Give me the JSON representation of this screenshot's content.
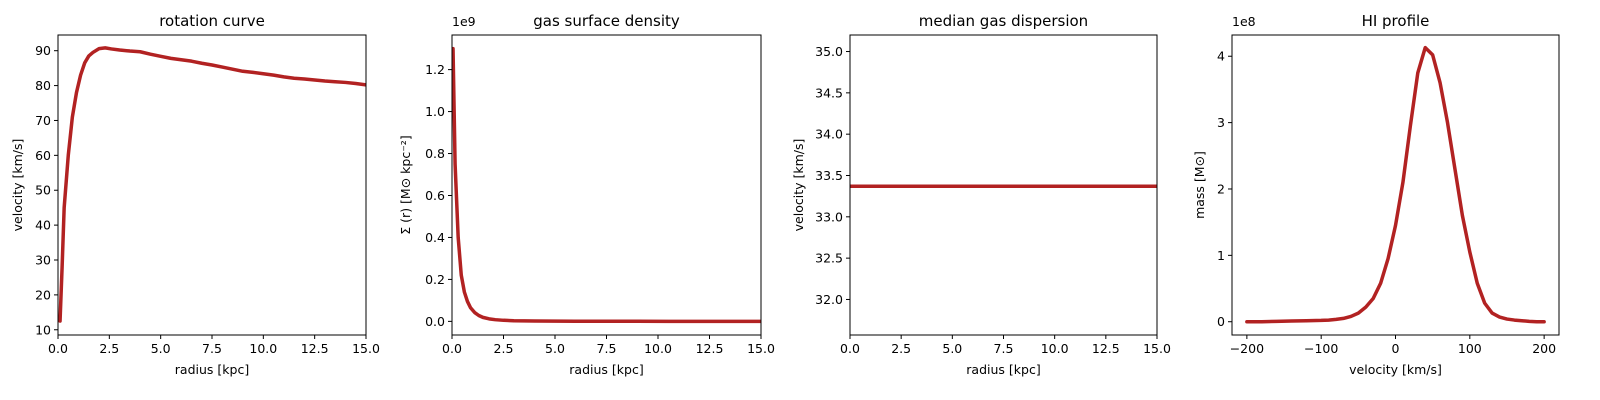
{
  "line_color": "#b22222",
  "chart_data": [
    {
      "type": "line",
      "title": "rotation curve",
      "xlabel": "radius [kpc]",
      "ylabel": "velocity [km/s]",
      "xlim": [
        0,
        15
      ],
      "ylim": [
        8.5,
        94.5
      ],
      "xticks": [
        0,
        2.5,
        5,
        7.5,
        10,
        12.5,
        15
      ],
      "xtick_labels": [
        "0.0",
        "2.5",
        "5.0",
        "7.5",
        "10.0",
        "12.5",
        "15.0"
      ],
      "yticks": [
        10,
        20,
        30,
        40,
        50,
        60,
        70,
        80,
        90
      ],
      "ytick_labels": [
        "10",
        "20",
        "30",
        "40",
        "50",
        "60",
        "70",
        "80",
        "90"
      ],
      "offset_text": "",
      "series": [
        {
          "x": [
            0.1,
            0.2,
            0.3,
            0.5,
            0.7,
            0.9,
            1.1,
            1.3,
            1.5,
            1.7,
            2.0,
            2.3,
            2.6,
            3.0,
            3.5,
            4.0,
            4.5,
            5.0,
            5.5,
            6.0,
            6.5,
            7.0,
            7.5,
            8.0,
            8.5,
            9.0,
            9.5,
            10.0,
            10.5,
            11.0,
            11.5,
            12.0,
            12.5,
            13.0,
            13.5,
            14.0,
            14.5,
            15.0
          ],
          "y": [
            12.5,
            28,
            45,
            60,
            71,
            78,
            83,
            86.5,
            88.5,
            89.5,
            90.6,
            90.8,
            90.5,
            90.2,
            89.9,
            89.7,
            89.0,
            88.4,
            87.8,
            87.4,
            87.0,
            86.4,
            85.9,
            85.3,
            84.7,
            84.1,
            83.8,
            83.4,
            83.0,
            82.5,
            82.1,
            81.9,
            81.6,
            81.3,
            81.1,
            80.9,
            80.6,
            80.2
          ]
        }
      ]
    },
    {
      "type": "line",
      "title": "gas surface density",
      "xlabel": "radius [kpc]",
      "ylabel": "Σ (r) [M⊙ kpc⁻²]",
      "xlim": [
        0,
        15
      ],
      "ylim": [
        -0.065,
        1.365
      ],
      "xticks": [
        0,
        2.5,
        5,
        7.5,
        10,
        12.5,
        15
      ],
      "xtick_labels": [
        "0.0",
        "2.5",
        "5.0",
        "7.5",
        "10.0",
        "12.5",
        "15.0"
      ],
      "yticks": [
        0,
        0.2,
        0.4,
        0.6,
        0.8,
        1.0,
        1.2
      ],
      "ytick_labels": [
        "0.0",
        "0.2",
        "0.4",
        "0.6",
        "0.8",
        "1.0",
        "1.2"
      ],
      "offset_text": "1e9",
      "series": [
        {
          "x": [
            0.05,
            0.15,
            0.3,
            0.45,
            0.6,
            0.75,
            0.9,
            1.1,
            1.3,
            1.5,
            1.8,
            2.1,
            2.5,
            3.0,
            3.5,
            4.0,
            5.0,
            6.0,
            7.5,
            9.0,
            10.5,
            12.0,
            13.5,
            15.0
          ],
          "y": [
            1.3,
            0.75,
            0.4,
            0.22,
            0.14,
            0.095,
            0.065,
            0.042,
            0.028,
            0.019,
            0.012,
            0.008,
            0.005,
            0.003,
            0.0022,
            0.0016,
            0.001,
            0.0007,
            0.0004,
            0.0003,
            0.0002,
            0.0001,
            0.0001,
            0.0001
          ]
        }
      ]
    },
    {
      "type": "line",
      "title": "median gas dispersion",
      "xlabel": "radius [kpc]",
      "ylabel": "velocity [km/s]",
      "xlim": [
        0,
        15
      ],
      "ylim": [
        31.57,
        35.2
      ],
      "xticks": [
        0,
        2.5,
        5,
        7.5,
        10,
        12.5,
        15
      ],
      "xtick_labels": [
        "0.0",
        "2.5",
        "5.0",
        "7.5",
        "10.0",
        "12.5",
        "15.0"
      ],
      "yticks": [
        32.0,
        32.5,
        33.0,
        33.5,
        34.0,
        34.5,
        35.0
      ],
      "ytick_labels": [
        "32.0",
        "32.5",
        "33.0",
        "33.5",
        "34.0",
        "34.5",
        "35.0"
      ],
      "offset_text": "",
      "series": [
        {
          "x": [
            0,
            15
          ],
          "y": [
            33.37,
            33.37
          ]
        }
      ]
    },
    {
      "type": "line",
      "title": "HI profile",
      "xlabel": "velocity [km/s]",
      "ylabel": "mass [M⊙]",
      "xlim": [
        -220,
        220
      ],
      "ylim": [
        -0.2,
        4.32
      ],
      "xticks": [
        -200,
        -100,
        0,
        100,
        200
      ],
      "xtick_labels": [
        "−200",
        "−100",
        "0",
        "100",
        "200"
      ],
      "yticks": [
        0,
        1,
        2,
        3,
        4
      ],
      "ytick_labels": [
        "0",
        "1",
        "2",
        "3",
        "4"
      ],
      "offset_text": "1e8",
      "series": [
        {
          "x": [
            -200,
            -180,
            -160,
            -140,
            -120,
            -100,
            -90,
            -80,
            -70,
            -60,
            -50,
            -40,
            -30,
            -20,
            -10,
            0,
            10,
            20,
            30,
            40,
            50,
            60,
            70,
            80,
            90,
            100,
            110,
            120,
            130,
            140,
            150,
            160,
            170,
            180,
            190,
            200
          ],
          "y": [
            0.0,
            0.0,
            0.005,
            0.01,
            0.015,
            0.02,
            0.025,
            0.035,
            0.05,
            0.08,
            0.13,
            0.22,
            0.35,
            0.58,
            0.95,
            1.45,
            2.1,
            2.95,
            3.75,
            4.13,
            4.02,
            3.6,
            3.0,
            2.3,
            1.6,
            1.05,
            0.58,
            0.28,
            0.13,
            0.07,
            0.04,
            0.025,
            0.015,
            0.005,
            0.0,
            0.0
          ]
        }
      ]
    }
  ]
}
